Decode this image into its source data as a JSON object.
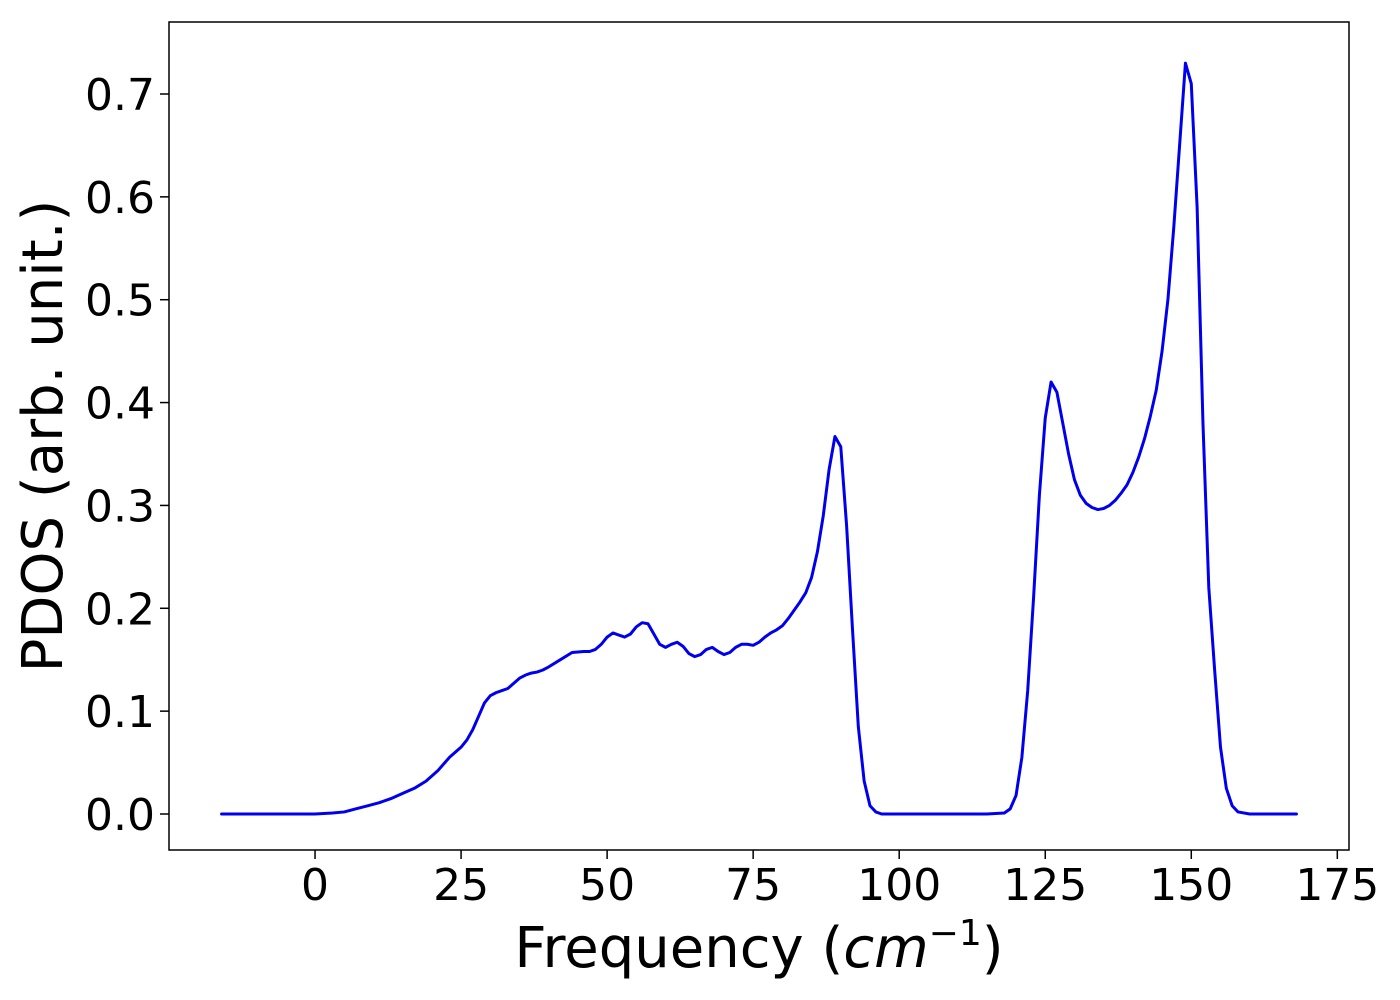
{
  "chart_data": {
    "type": "line",
    "title": "",
    "xlabel": "Frequency (",
    "xlabel_unit": "cm",
    "xlabel_exp": "−1",
    "xlabel_close": ")",
    "ylabel": "PDOS (arb. unit.)",
    "xlim": [
      -25,
      177
    ],
    "ylim": [
      -0.035,
      0.77
    ],
    "grid": false,
    "legend": "none",
    "line_color": "#0000ee",
    "x_ticks": [
      0,
      25,
      50,
      75,
      100,
      125,
      150,
      175
    ],
    "y_ticks": [
      0.0,
      0.1,
      0.2,
      0.3,
      0.4,
      0.5,
      0.6,
      0.7
    ],
    "x_tick_labels": [
      "0",
      "25",
      "50",
      "75",
      "100",
      "125",
      "150",
      "175"
    ],
    "y_tick_labels": [
      "0.0",
      "0.1",
      "0.2",
      "0.3",
      "0.4",
      "0.5",
      "0.6",
      "0.7"
    ],
    "series": [
      {
        "x": [
          -16,
          -10,
          -5,
          0,
          3,
          5,
          7,
          9,
          11,
          13,
          15,
          17,
          19,
          21,
          23,
          25,
          26,
          27,
          28,
          29,
          30,
          31,
          32,
          33,
          34,
          35,
          36,
          37,
          38,
          39,
          40,
          42,
          44,
          46,
          47,
          48,
          49,
          50,
          51,
          52,
          53,
          54,
          55,
          56,
          57,
          58,
          59,
          60,
          61,
          62,
          63,
          64,
          65,
          66,
          67,
          68,
          69,
          70,
          71,
          72,
          73,
          74,
          75,
          76,
          77,
          78,
          79,
          80,
          81,
          82,
          83,
          84,
          85,
          86,
          87,
          88,
          89,
          90,
          91,
          92,
          93,
          94,
          95,
          96,
          97,
          100,
          105,
          110,
          115,
          118,
          119,
          120,
          121,
          122,
          123,
          124,
          125,
          126,
          127,
          128,
          129,
          130,
          131,
          132,
          133,
          134,
          135,
          136,
          137,
          138,
          139,
          140,
          141,
          142,
          143,
          144,
          145,
          146,
          147,
          148,
          149,
          150,
          151,
          152,
          153,
          154,
          155,
          156,
          157,
          158,
          160,
          165,
          168
        ],
        "y": [
          0.0,
          0.0,
          0.0,
          0.0,
          0.001,
          0.002,
          0.005,
          0.008,
          0.011,
          0.015,
          0.02,
          0.025,
          0.032,
          0.042,
          0.055,
          0.065,
          0.072,
          0.082,
          0.095,
          0.108,
          0.115,
          0.118,
          0.12,
          0.122,
          0.127,
          0.132,
          0.135,
          0.137,
          0.138,
          0.14,
          0.143,
          0.15,
          0.157,
          0.158,
          0.158,
          0.16,
          0.165,
          0.172,
          0.176,
          0.174,
          0.172,
          0.175,
          0.182,
          0.186,
          0.185,
          0.175,
          0.165,
          0.162,
          0.165,
          0.167,
          0.163,
          0.156,
          0.153,
          0.155,
          0.16,
          0.162,
          0.158,
          0.155,
          0.157,
          0.162,
          0.165,
          0.165,
          0.164,
          0.167,
          0.172,
          0.176,
          0.179,
          0.183,
          0.19,
          0.198,
          0.206,
          0.215,
          0.23,
          0.255,
          0.29,
          0.335,
          0.367,
          0.357,
          0.28,
          0.18,
          0.085,
          0.032,
          0.008,
          0.002,
          0.0,
          0.0,
          0.0,
          0.0,
          0.0,
          0.001,
          0.005,
          0.018,
          0.055,
          0.12,
          0.21,
          0.31,
          0.385,
          0.42,
          0.41,
          0.38,
          0.35,
          0.325,
          0.31,
          0.302,
          0.298,
          0.296,
          0.297,
          0.3,
          0.305,
          0.312,
          0.32,
          0.332,
          0.347,
          0.365,
          0.387,
          0.412,
          0.45,
          0.5,
          0.57,
          0.65,
          0.73,
          0.71,
          0.59,
          0.38,
          0.22,
          0.14,
          0.065,
          0.025,
          0.008,
          0.002,
          0.0,
          0.0,
          0.0
        ]
      }
    ]
  }
}
